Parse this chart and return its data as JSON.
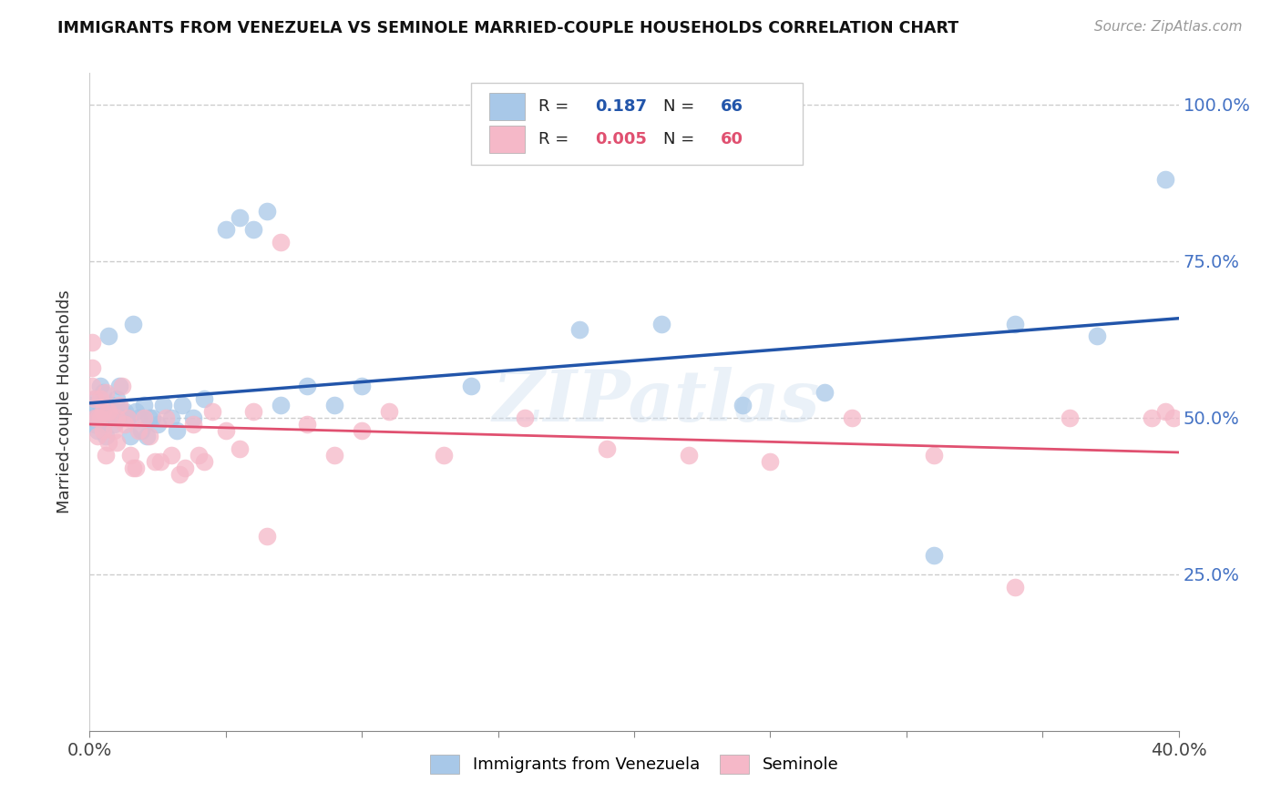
{
  "title": "IMMIGRANTS FROM VENEZUELA VS SEMINOLE MARRIED-COUPLE HOUSEHOLDS CORRELATION CHART",
  "source": "Source: ZipAtlas.com",
  "ylabel": "Married-couple Households",
  "legend1_label": "Immigrants from Venezuela",
  "legend2_label": "Seminole",
  "R1": "0.187",
  "N1": "66",
  "R2": "0.005",
  "N2": "60",
  "blue_color": "#a8c8e8",
  "pink_color": "#f5b8c8",
  "blue_line_color": "#2255aa",
  "pink_line_color": "#e05070",
  "watermark": "ZIPatlas",
  "blue_x": [
    0.001,
    0.001,
    0.002,
    0.002,
    0.002,
    0.003,
    0.003,
    0.003,
    0.004,
    0.004,
    0.004,
    0.005,
    0.005,
    0.005,
    0.005,
    0.006,
    0.006,
    0.006,
    0.007,
    0.007,
    0.007,
    0.008,
    0.008,
    0.009,
    0.009,
    0.01,
    0.01,
    0.011,
    0.011,
    0.012,
    0.012,
    0.013,
    0.014,
    0.015,
    0.016,
    0.017,
    0.018,
    0.019,
    0.02,
    0.021,
    0.022,
    0.023,
    0.025,
    0.027,
    0.03,
    0.032,
    0.034,
    0.038,
    0.042,
    0.05,
    0.055,
    0.06,
    0.065,
    0.07,
    0.08,
    0.09,
    0.1,
    0.14,
    0.18,
    0.21,
    0.24,
    0.27,
    0.31,
    0.34,
    0.37,
    0.395
  ],
  "blue_y": [
    0.5,
    0.52,
    0.5,
    0.53,
    0.49,
    0.51,
    0.5,
    0.48,
    0.52,
    0.5,
    0.55,
    0.49,
    0.51,
    0.5,
    0.54,
    0.47,
    0.52,
    0.5,
    0.63,
    0.51,
    0.5,
    0.5,
    0.52,
    0.49,
    0.51,
    0.53,
    0.5,
    0.55,
    0.5,
    0.51,
    0.5,
    0.51,
    0.5,
    0.47,
    0.65,
    0.51,
    0.5,
    0.48,
    0.52,
    0.47,
    0.5,
    0.5,
    0.49,
    0.52,
    0.5,
    0.48,
    0.52,
    0.5,
    0.53,
    0.8,
    0.82,
    0.8,
    0.83,
    0.52,
    0.55,
    0.52,
    0.55,
    0.55,
    0.64,
    0.65,
    0.52,
    0.54,
    0.28,
    0.65,
    0.63,
    0.88
  ],
  "pink_x": [
    0.001,
    0.001,
    0.001,
    0.002,
    0.002,
    0.003,
    0.003,
    0.004,
    0.004,
    0.005,
    0.005,
    0.006,
    0.006,
    0.007,
    0.007,
    0.008,
    0.009,
    0.01,
    0.01,
    0.011,
    0.012,
    0.013,
    0.014,
    0.015,
    0.016,
    0.017,
    0.018,
    0.02,
    0.022,
    0.024,
    0.026,
    0.028,
    0.03,
    0.033,
    0.035,
    0.038,
    0.04,
    0.042,
    0.045,
    0.05,
    0.055,
    0.06,
    0.065,
    0.07,
    0.08,
    0.09,
    0.1,
    0.11,
    0.13,
    0.16,
    0.19,
    0.22,
    0.25,
    0.28,
    0.31,
    0.34,
    0.36,
    0.39,
    0.395,
    0.398
  ],
  "pink_y": [
    0.62,
    0.58,
    0.55,
    0.53,
    0.5,
    0.5,
    0.47,
    0.53,
    0.5,
    0.48,
    0.51,
    0.44,
    0.54,
    0.51,
    0.46,
    0.5,
    0.48,
    0.5,
    0.46,
    0.52,
    0.55,
    0.49,
    0.5,
    0.44,
    0.42,
    0.42,
    0.48,
    0.5,
    0.47,
    0.43,
    0.43,
    0.5,
    0.44,
    0.41,
    0.42,
    0.49,
    0.44,
    0.43,
    0.51,
    0.48,
    0.45,
    0.51,
    0.31,
    0.78,
    0.49,
    0.44,
    0.48,
    0.51,
    0.44,
    0.5,
    0.45,
    0.44,
    0.43,
    0.5,
    0.44,
    0.23,
    0.5,
    0.5,
    0.51,
    0.5
  ],
  "xlim": [
    0.0,
    0.4
  ],
  "ylim": [
    0.0,
    1.05
  ],
  "xtick_positions": [
    0.0,
    0.05,
    0.1,
    0.15,
    0.2,
    0.25,
    0.3,
    0.35,
    0.4
  ],
  "ytick_positions": [
    0.0,
    0.25,
    0.5,
    0.75,
    1.0
  ],
  "right_ytick_labels": [
    "25.0%",
    "50.0%",
    "75.0%",
    "100.0%"
  ],
  "right_ytick_values": [
    0.25,
    0.5,
    0.75,
    1.0
  ]
}
